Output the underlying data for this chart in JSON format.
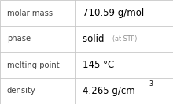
{
  "rows": [
    {
      "label": "molar mass",
      "value": "710.59 g/mol",
      "superscript": null,
      "small_text": null
    },
    {
      "label": "phase",
      "value": "solid",
      "superscript": null,
      "small_text": "(at STP)"
    },
    {
      "label": "melting point",
      "value": "145 °C",
      "superscript": null,
      "small_text": null
    },
    {
      "label": "density",
      "value": "4.265 g/cm",
      "superscript": "3",
      "small_text": null
    }
  ],
  "bg_color": "#ffffff",
  "border_color": "#c8c8c8",
  "label_color": "#404040",
  "value_color": "#000000",
  "small_text_color": "#909090",
  "label_fontsize": 7.2,
  "value_fontsize": 8.5,
  "small_fontsize": 5.8,
  "super_fontsize": 5.5,
  "col_split": 0.435
}
